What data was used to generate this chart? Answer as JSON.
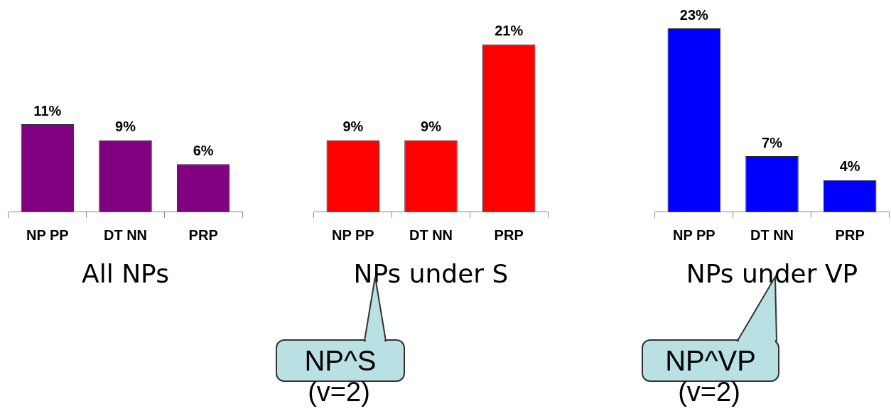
{
  "chart_data": [
    {
      "type": "bar",
      "title": "All NPs",
      "categories": [
        "NP PP",
        "DT NN",
        "PRP"
      ],
      "values": [
        11,
        9,
        6
      ],
      "value_labels": [
        "11%",
        "9%",
        "6%"
      ],
      "color": "#800080",
      "tick_labels": "x",
      "grid": false,
      "legend": false
    },
    {
      "type": "bar",
      "title": "NPs under S",
      "categories": [
        "NP PP",
        "DT NN",
        "PRP"
      ],
      "values": [
        9,
        9,
        21
      ],
      "value_labels": [
        "9%",
        "9%",
        "21%"
      ],
      "color": "#ff0000",
      "tick_labels": "x",
      "grid": false,
      "legend": false,
      "annotations": [
        "NP^S",
        "(v=2)"
      ]
    },
    {
      "type": "bar",
      "title": "NPs under VP",
      "categories": [
        "NP PP",
        "DT NN",
        "PRP"
      ],
      "values": [
        23,
        7,
        4
      ],
      "value_labels": [
        "23%",
        "7%",
        "4%"
      ],
      "color": "#0000ff",
      "tick_labels": "x",
      "grid": false,
      "legend": false,
      "annotations": [
        "NP^VP",
        "(v=2)"
      ]
    }
  ]
}
